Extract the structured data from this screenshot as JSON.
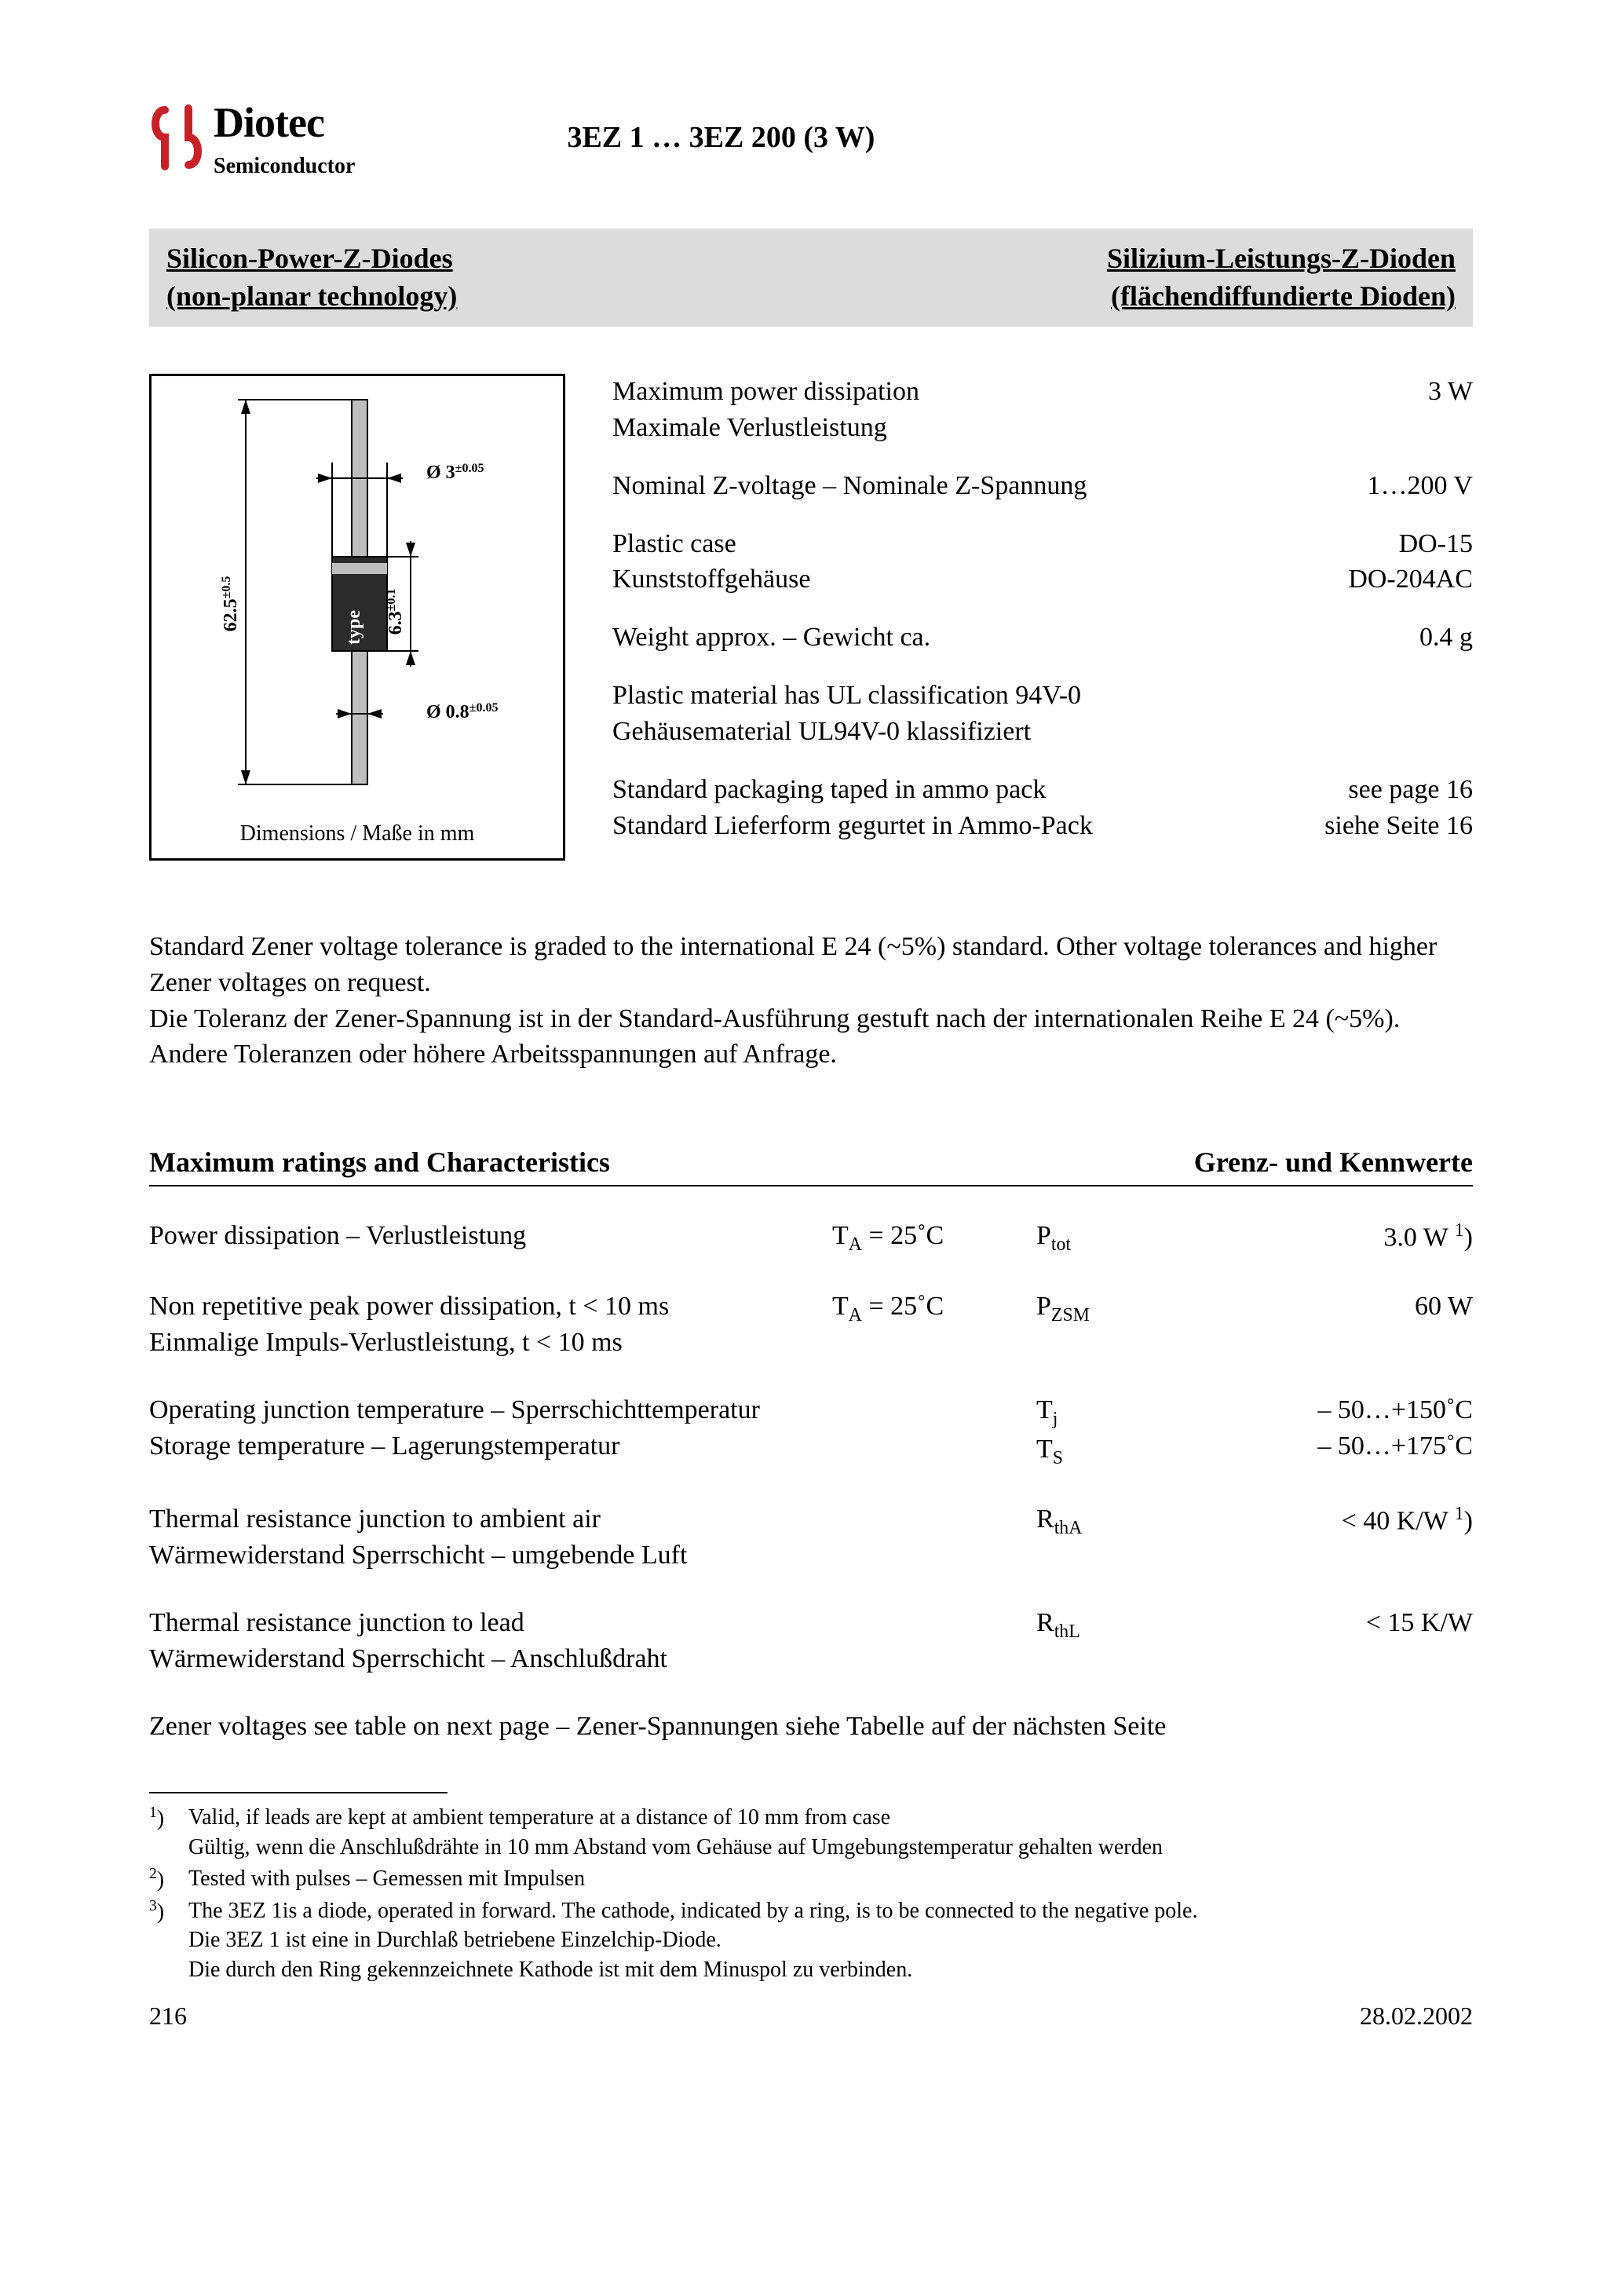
{
  "colors": {
    "logo_red": "#c72127",
    "text": "#000000",
    "subtitle_bg": "#dcdcdc",
    "page_bg": "#ffffff",
    "diag_body_fill": "#2b2b2b",
    "diag_lead_fill": "#bfbfbf"
  },
  "logo": {
    "name": "Diotec",
    "sub": "Semiconductor"
  },
  "doc_title": "3EZ 1 … 3EZ 200 (3 W)",
  "subtitle": {
    "left_l1": "Silicon-Power-Z-Diodes",
    "left_l2": "(non-planar technology)",
    "right_l1": "Silizium-Leistungs-Z-Dioden",
    "right_l2": "(flächendiffundierte Dioden)"
  },
  "diagram": {
    "caption": "Dimensions / Maße in mm",
    "len": "62.5",
    "len_tol": "±0.5",
    "lead_dia": "Ø 0.8",
    "lead_tol": "±0.05",
    "body_dia": "Ø 3",
    "body_tol": "±0.05",
    "body_len": "6.3",
    "body_len_tol": "±0.1",
    "type_label": "type"
  },
  "specs": [
    {
      "en": "Maximum power dissipation",
      "de": "Maximale Verlustleistung",
      "val": "3 W"
    },
    {
      "en": "Nominal Z-voltage – Nominale Z-Spannung",
      "de": "",
      "val": "1…200 V"
    },
    {
      "en": "Plastic case",
      "de": "Kunststoffgehäuse",
      "val": "DO-15\nDO-204AC"
    },
    {
      "en": "Weight approx. – Gewicht ca.",
      "de": "",
      "val": "0.4 g"
    },
    {
      "en": "Plastic material has UL classification 94V-0",
      "de": "Gehäusematerial UL94V-0 klassifiziert",
      "val": ""
    },
    {
      "en": "Standard packaging taped in ammo pack",
      "de": "Standard Lieferform gegurtet in Ammo-Pack",
      "val": "see page 16\nsiehe Seite 16"
    }
  ],
  "tolerance_para": "Standard Zener voltage tolerance is graded to the international E 24 (~5%) standard. Other voltage tolerances and higher Zener voltages on request.\nDie Toleranz der Zener-Spannung ist in der Standard-Ausführung gestuft nach der internationalen Reihe E 24 (~5%). Andere Toleranzen oder höhere Arbeitsspannungen auf Anfrage.",
  "ratings_header": {
    "left": "Maximum ratings and Characteristics",
    "right": "Grenz- und Kennwerte"
  },
  "ratings": [
    {
      "desc_en": "Power dissipation – Verlustleistung",
      "desc_de": "",
      "cond_html": "T<sub>A</sub> = 25˚C",
      "sym_html": "P<sub>tot</sub>",
      "val_html": "3.0 W <sup>1</sup>)"
    },
    {
      "desc_en": "Non repetitive peak power dissipation, t < 10 ms",
      "desc_de": "Einmalige Impuls-Verlustleistung, t < 10 ms",
      "cond_html": "T<sub>A</sub> = 25˚C",
      "sym_html": "P<sub>ZSM</sub>",
      "val_html": "60 W"
    },
    {
      "desc_en": "Operating junction temperature – Sperrschichttemperatur",
      "desc_de": "Storage temperature – Lagerungstemperatur",
      "cond_html": "",
      "sym_html": "T<sub>j</sub><br>T<sub>S</sub>",
      "val_html": "– 50…+150˚C<br>– 50…+175˚C"
    },
    {
      "desc_en": "Thermal resistance junction to ambient air",
      "desc_de": "Wärmewiderstand Sperrschicht – umgebende Luft",
      "cond_html": "",
      "sym_html": "R<sub>thA</sub>",
      "val_html": "< 40 K/W <sup>1</sup>)"
    },
    {
      "desc_en": "Thermal resistance junction to lead",
      "desc_de": "Wärmewiderstand Sperrschicht – Anschlußdraht",
      "cond_html": "",
      "sym_html": "R<sub>thL</sub>",
      "val_html": "< 15 K/W"
    }
  ],
  "note_line": "Zener voltages see table on next page – Zener-Spannungen siehe Tabelle auf der nächsten Seite",
  "footnotes": [
    {
      "mark": "1)",
      "en": "Valid, if leads are kept at ambient temperature at a distance of 10 mm from case",
      "de": "Gültig, wenn die Anschlußdrähte in 10 mm Abstand vom Gehäuse auf Umgebungstemperatur gehalten werden"
    },
    {
      "mark": "2)",
      "en": "Tested with pulses – Gemessen mit Impulsen",
      "de": ""
    },
    {
      "mark": "3)",
      "en": "The 3EZ 1is a diode, operated in forward. The cathode, indicated by a ring, is to be connected to the negative pole.",
      "de": "Die 3EZ 1 ist eine in Durchlaß betriebene Einzelchip-Diode.\nDie durch den Ring gekennzeichnete Kathode ist mit dem Minuspol zu verbinden."
    }
  ],
  "page_footer": {
    "page": "216",
    "date": "28.02.2002"
  }
}
